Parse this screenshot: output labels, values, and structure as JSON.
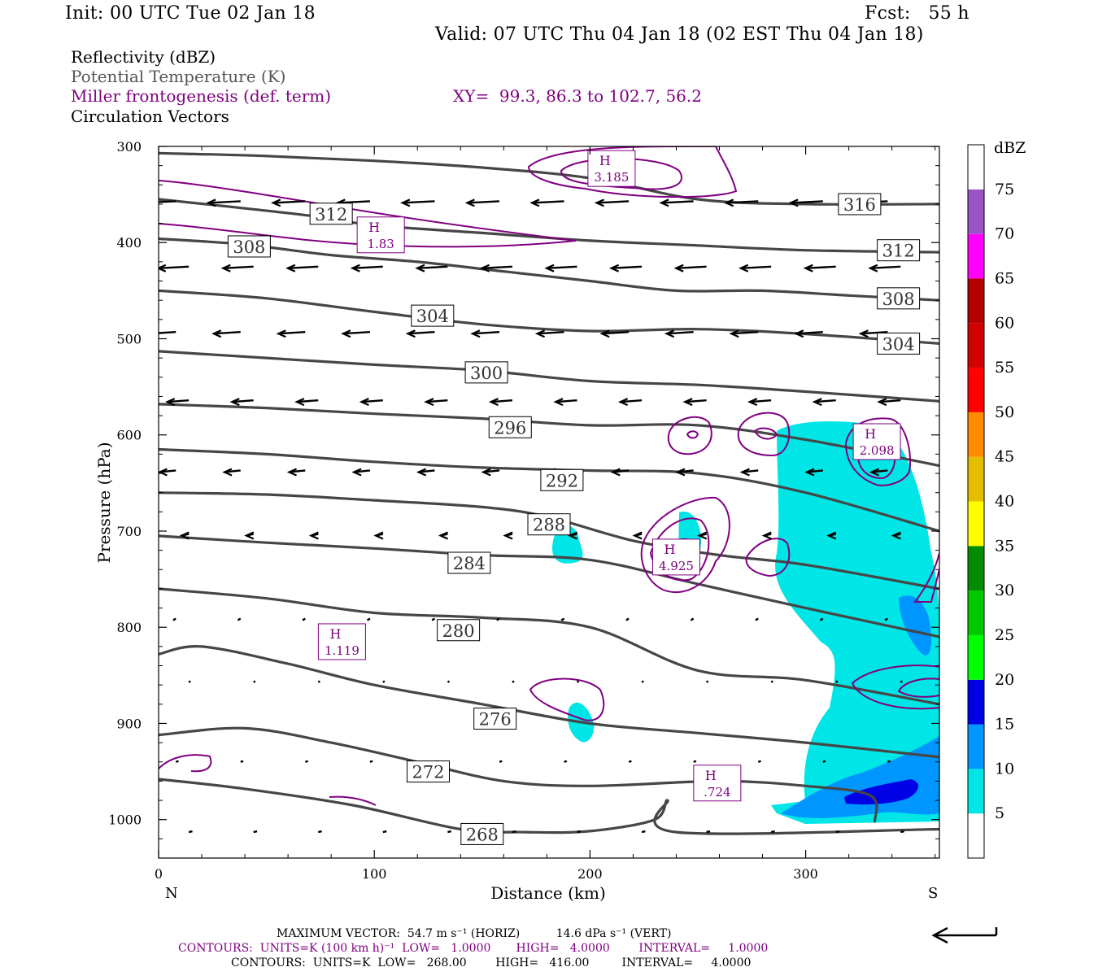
{
  "header": {
    "init": "Init: 00 UTC Tue 02 Jan 18",
    "fcst": "Fcst:   55 h",
    "valid": "Valid: 07 UTC Thu 04 Jan 18 (02 EST Thu 04 Jan 18)"
  },
  "legend": {
    "reflectivity": "Reflectivity (dBZ)",
    "theta": "Potential Temperature (K)",
    "frontogenesis": "Miller frontogenesis (def. term)",
    "xy": "XY=  99.3, 86.3 to 102.7, 56.2",
    "vectors": "Circulation Vectors"
  },
  "colors": {
    "theta": "#464646",
    "frontogenesis": "#800080",
    "vectors": "#000000",
    "refl_5": "#00e6e6",
    "refl_10": "#0096ff",
    "refl_15": "#0000e6"
  },
  "footer": {
    "max_vector": "MAXIMUM VECTOR:  54.7 m s⁻¹ (HORIZ)          14.6 dPa s⁻¹ (VERT)",
    "contours_front": "CONTOURS:  UNITS=K (100 km h)⁻¹  LOW=   1.0000       HIGH=   4.0000        INTERVAL=     1.0000",
    "contours_theta": "CONTOURS:  UNITS=K  LOW=   268.00        HIGH=   416.00         INTERVAL=     4.0000"
  },
  "chart_data": {
    "type": "cross-section",
    "xlabel": "Distance (km)",
    "ylabel": "Pressure (hPa)",
    "x_ticks": [
      0,
      100,
      200,
      300
    ],
    "y_ticks": [
      300,
      400,
      500,
      600,
      700,
      800,
      900,
      1000
    ],
    "xlim": [
      0,
      362
    ],
    "ylim": [
      300,
      1040
    ],
    "y_inverted": true,
    "x_end_labels": {
      "left": "N",
      "right": "S"
    },
    "colorbar": {
      "title": "dBZ",
      "levels": [
        5,
        10,
        15,
        20,
        25,
        30,
        35,
        40,
        45,
        50,
        55,
        60,
        65,
        70,
        75
      ],
      "colors": [
        "#ffffff",
        "#00e6e6",
        "#0096ff",
        "#0000e6",
        "#00ff00",
        "#00c800",
        "#008c00",
        "#ffff00",
        "#e6be00",
        "#ff8c00",
        "#ff0000",
        "#d20000",
        "#b40000",
        "#ff00ff",
        "#9955c8",
        "#ffffff"
      ]
    },
    "theta_contours": [
      {
        "label": "316",
        "x": [
          0,
          50,
          100,
          150,
          200,
          250,
          300,
          362
        ],
        "p": [
          307,
          310,
          315,
          322,
          333,
          355,
          360,
          360
        ],
        "label_at": [
          325,
          360
        ]
      },
      {
        "label": "312",
        "x": [
          0,
          30,
          70,
          100,
          150,
          200,
          250,
          300,
          362
        ],
        "p": [
          355,
          362,
          372,
          382,
          390,
          398,
          403,
          408,
          410
        ],
        "label_at": [
          [
            80,
            370
          ],
          [
            343,
            408
          ]
        ]
      },
      {
        "label": "308",
        "x": [
          0,
          40,
          80,
          120,
          160,
          200,
          240,
          280,
          320,
          362
        ],
        "p": [
          396,
          402,
          413,
          420,
          430,
          440,
          450,
          450,
          455,
          460
        ],
        "label_at": [
          [
            42,
            404
          ],
          [
            343,
            458
          ]
        ]
      },
      {
        "label": "304",
        "x": [
          0,
          50,
          100,
          150,
          200,
          250,
          300,
          362
        ],
        "p": [
          450,
          458,
          472,
          485,
          492,
          490,
          495,
          505
        ],
        "label_at": [
          [
            127,
            476
          ],
          [
            343,
            505
          ]
        ]
      },
      {
        "label": "300",
        "x": [
          0,
          50,
          100,
          150,
          200,
          250,
          300,
          362
        ],
        "p": [
          513,
          520,
          527,
          533,
          544,
          548,
          555,
          565
        ],
        "label_at": [
          152,
          535
        ]
      },
      {
        "label": "296",
        "x": [
          0,
          50,
          100,
          150,
          200,
          250,
          300,
          362
        ],
        "p": [
          568,
          572,
          578,
          583,
          590,
          590,
          605,
          632
        ],
        "label_at": [
          163,
          592
        ]
      },
      {
        "label": "292",
        "x": [
          0,
          50,
          100,
          150,
          200,
          250,
          300,
          362
        ],
        "p": [
          615,
          620,
          628,
          634,
          637,
          640,
          660,
          700
        ],
        "label_at": [
          187,
          647
        ]
      },
      {
        "label": "288",
        "x": [
          0,
          50,
          100,
          150,
          180,
          220,
          260,
          300,
          362
        ],
        "p": [
          660,
          662,
          668,
          675,
          685,
          710,
          725,
          735,
          760
        ],
        "label_at": [
          181,
          693
        ]
      },
      {
        "label": "284",
        "x": [
          0,
          50,
          100,
          150,
          200,
          250,
          300,
          362
        ],
        "p": [
          705,
          712,
          718,
          725,
          730,
          755,
          780,
          810
        ],
        "label_at": [
          144,
          733
        ]
      },
      {
        "label": "280",
        "x": [
          0,
          50,
          100,
          150,
          200,
          250,
          300,
          362
        ],
        "p": [
          760,
          770,
          785,
          790,
          800,
          845,
          855,
          880
        ],
        "label_at": [
          139,
          803
        ]
      },
      {
        "label": "276",
        "x": [
          0,
          20,
          60,
          100,
          150,
          200,
          250,
          300,
          362
        ],
        "p": [
          828,
          820,
          838,
          860,
          880,
          900,
          910,
          920,
          935
        ],
        "label_at": [
          156,
          895
        ]
      },
      {
        "label": "272",
        "x": [
          0,
          40,
          80,
          120,
          160,
          200,
          260,
          300,
          330,
          332
        ],
        "p": [
          912,
          905,
          920,
          940,
          960,
          965,
          960,
          965,
          975,
          1003
        ],
        "label_at": [
          125,
          950
        ]
      },
      {
        "label": "268",
        "x": [
          0,
          40,
          90,
          140,
          170,
          200,
          230,
          236,
          240,
          362
        ],
        "p": [
          958,
          968,
          985,
          1010,
          1013,
          1012,
          1000,
          980,
          1013,
          1010
        ],
        "label_at": [
          150,
          1015
        ]
      }
    ],
    "frontogenesis_maxima": [
      {
        "label": "H",
        "value": "3.185",
        "x": 210,
        "p": 323
      },
      {
        "label": "H",
        "value": "1.83",
        "x": 103,
        "p": 392
      },
      {
        "label": "H",
        "value": "2.098",
        "x": 333,
        "p": 607
      },
      {
        "label": "H",
        "value": "4.925",
        "x": 240,
        "p": 727
      },
      {
        "label": "H",
        "value": "1.119",
        "x": 85,
        "p": 815
      },
      {
        "label": "H",
        "value": ".724",
        "x": 259,
        "p": 962
      }
    ],
    "vector_rows": [
      {
        "p": 360,
        "u": -3.6
      },
      {
        "p": 425,
        "u": -3.4
      },
      {
        "p": 490,
        "u": -3.0
      },
      {
        "p": 565,
        "u": -2.4
      },
      {
        "p": 635,
        "u": -1.8
      },
      {
        "p": 705,
        "u": -0.8
      },
      {
        "p": 790,
        "u": -0.3
      },
      {
        "p": 860,
        "u": 0.2
      },
      {
        "p": 940,
        "u": 0.3
      },
      {
        "p": 1010,
        "u": 0.4
      }
    ]
  }
}
